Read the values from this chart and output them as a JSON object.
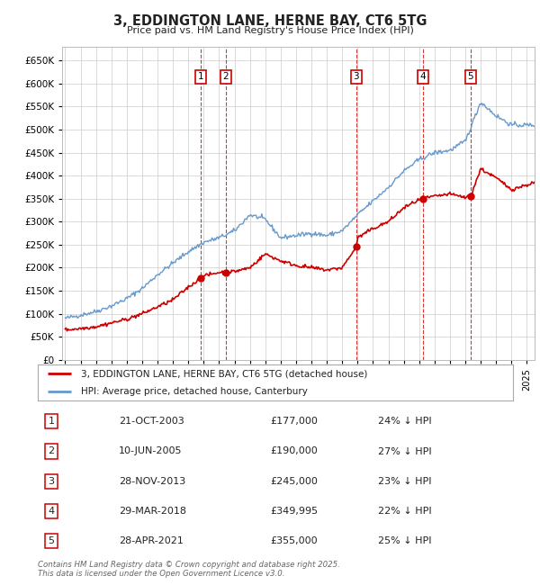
{
  "title": "3, EDDINGTON LANE, HERNE BAY, CT6 5TG",
  "subtitle": "Price paid vs. HM Land Registry's House Price Index (HPI)",
  "ylim": [
    0,
    680000
  ],
  "yticks": [
    0,
    50000,
    100000,
    150000,
    200000,
    250000,
    300000,
    350000,
    400000,
    450000,
    500000,
    550000,
    600000,
    650000
  ],
  "xlim_start": 1994.8,
  "xlim_end": 2025.5,
  "sale_dates_num": [
    2003.81,
    2005.44,
    2013.91,
    2018.25,
    2021.33
  ],
  "sale_prices": [
    177000,
    190000,
    245000,
    349995,
    355000
  ],
  "sale_labels": [
    "1",
    "2",
    "3",
    "4",
    "5"
  ],
  "sale_color": "#cc0000",
  "hpi_color": "#6699cc",
  "legend_sale_label": "3, EDDINGTON LANE, HERNE BAY, CT6 5TG (detached house)",
  "legend_hpi_label": "HPI: Average price, detached house, Canterbury",
  "table_rows": [
    [
      "1",
      "21-OCT-2003",
      "£177,000",
      "24% ↓ HPI"
    ],
    [
      "2",
      "10-JUN-2005",
      "£190,000",
      "27% ↓ HPI"
    ],
    [
      "3",
      "28-NOV-2013",
      "£245,000",
      "23% ↓ HPI"
    ],
    [
      "4",
      "29-MAR-2018",
      "£349,995",
      "22% ↓ HPI"
    ],
    [
      "5",
      "28-APR-2021",
      "£355,000",
      "25% ↓ HPI"
    ]
  ],
  "footer": "Contains HM Land Registry data © Crown copyright and database right 2025.\nThis data is licensed under the Open Government Licence v3.0.",
  "background_color": "#ffffff",
  "grid_color": "#cccccc",
  "hpi_knots_x": [
    1995,
    1996,
    1997,
    1998,
    1999,
    2000,
    2001,
    2002,
    2003,
    2004,
    2005,
    2006,
    2007,
    2008,
    2009,
    2010,
    2011,
    2012,
    2013,
    2014,
    2015,
    2016,
    2017,
    2018,
    2019,
    2020,
    2021,
    2022,
    2023,
    2024,
    2025,
    2025.5
  ],
  "hpi_knots_y": [
    90000,
    97000,
    105000,
    117000,
    133000,
    155000,
    185000,
    210000,
    235000,
    255000,
    265000,
    280000,
    315000,
    305000,
    265000,
    270000,
    275000,
    270000,
    280000,
    315000,
    345000,
    375000,
    410000,
    435000,
    450000,
    455000,
    475000,
    560000,
    530000,
    510000,
    510000,
    510000
  ],
  "red_knots_x": [
    1995,
    1996,
    1997,
    1998,
    1999,
    2000,
    2001,
    2002,
    2003,
    2003.81,
    2004,
    2005,
    2005.44,
    2006,
    2007,
    2008,
    2009,
    2010,
    2011,
    2012,
    2013,
    2013.91,
    2014,
    2015,
    2016,
    2017,
    2018,
    2018.25,
    2019,
    2020,
    2021,
    2021.33,
    2022,
    2023,
    2024,
    2025,
    2025.5
  ],
  "red_knots_y": [
    65000,
    68000,
    72000,
    80000,
    88000,
    100000,
    115000,
    130000,
    158000,
    177000,
    182000,
    190000,
    190000,
    192000,
    200000,
    230000,
    215000,
    205000,
    200000,
    195000,
    200000,
    245000,
    265000,
    285000,
    300000,
    330000,
    348000,
    349995,
    355000,
    360000,
    353000,
    355000,
    415000,
    395000,
    370000,
    380000,
    385000
  ]
}
